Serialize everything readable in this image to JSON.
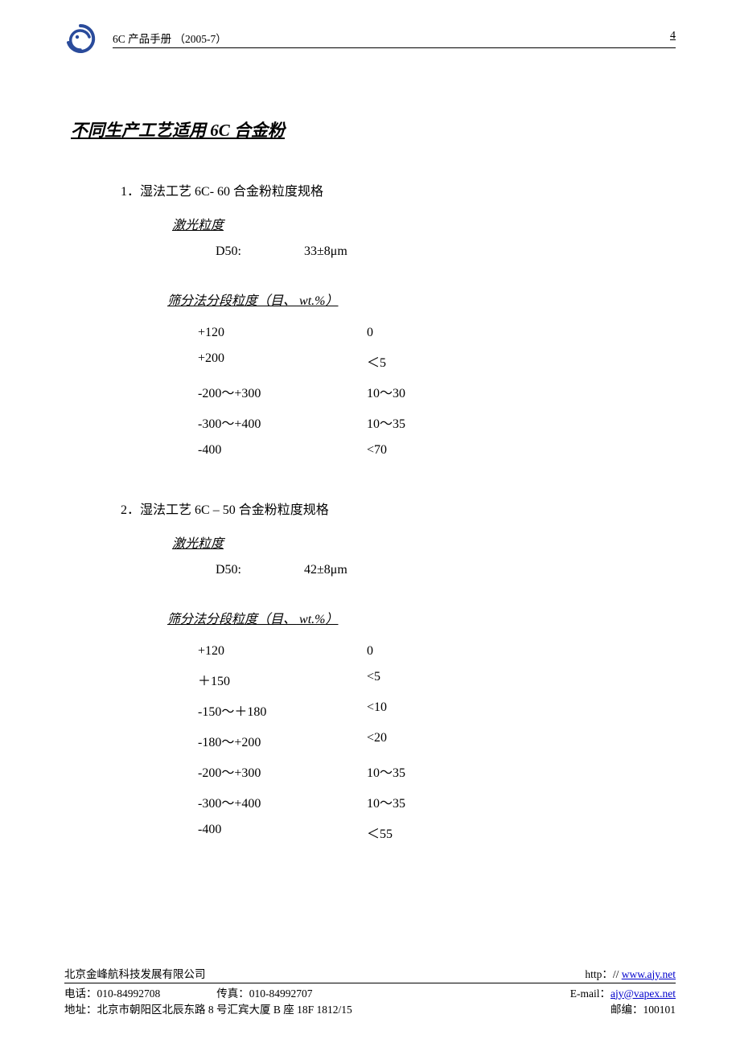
{
  "header": {
    "doc_title": "6C 产品手册 （2005-7）",
    "page_number": "4",
    "logo_color": "#2a4b9b"
  },
  "title": "不同生产工艺适用 6C 合金粉",
  "sections": [
    {
      "num": "1．",
      "head": "湿法工艺 6C- 60 合金粉粒度规格",
      "laser_label": "激光粒度",
      "d50_label": "D50:",
      "d50_value": "33±8μm",
      "sieve_label_pre": "筛分法分段粒度（目、",
      "sieve_label_wt": " wt.%",
      "sieve_label_post": "）",
      "rows": [
        {
          "mesh": "+120",
          "val": "0"
        },
        {
          "mesh": "+200",
          "val": "＜5"
        },
        {
          "mesh": "-200～+300",
          "val": "10～30"
        },
        {
          "mesh": "-300～+400",
          "val": "10～35"
        },
        {
          "mesh": "-400",
          "val": "<70"
        }
      ]
    },
    {
      "num": "2．",
      "head": "湿法工艺 6C – 50 合金粉粒度规格",
      "laser_label": "激光粒度",
      "d50_label": "D50:",
      "d50_value": "42±8μm",
      "sieve_label_pre": "筛分法分段粒度（目、",
      "sieve_label_wt": " wt.%",
      "sieve_label_post": "）",
      "rows": [
        {
          "mesh": "+120",
          "val": "0"
        },
        {
          "mesh": "＋150",
          "val": "<5"
        },
        {
          "mesh": "-150～＋180",
          "val": "<10"
        },
        {
          "mesh": "-180～+200",
          "val": "<20"
        },
        {
          "mesh": "-200～+300",
          "val": "10～35"
        },
        {
          "mesh": "-300～+400",
          "val": "10～35"
        },
        {
          "mesh": "-400",
          "val": "＜55"
        }
      ]
    }
  ],
  "footer": {
    "company": "北京金峰航科技发展有限公司",
    "http_prefix": "http：// ",
    "website": "www.ajy.net",
    "tel_label": "电话：",
    "tel": "010-84992708",
    "fax_label": "传真：",
    "fax": "010-84992707",
    "email_label": "E-mail：",
    "email": "ajy@vapex.net",
    "addr_label": "地址：",
    "addr": "北京市朝阳区北辰东路 8 号汇宾大厦 B 座 18F 1812/15",
    "zip_label": "邮编：",
    "zip": "100101"
  }
}
